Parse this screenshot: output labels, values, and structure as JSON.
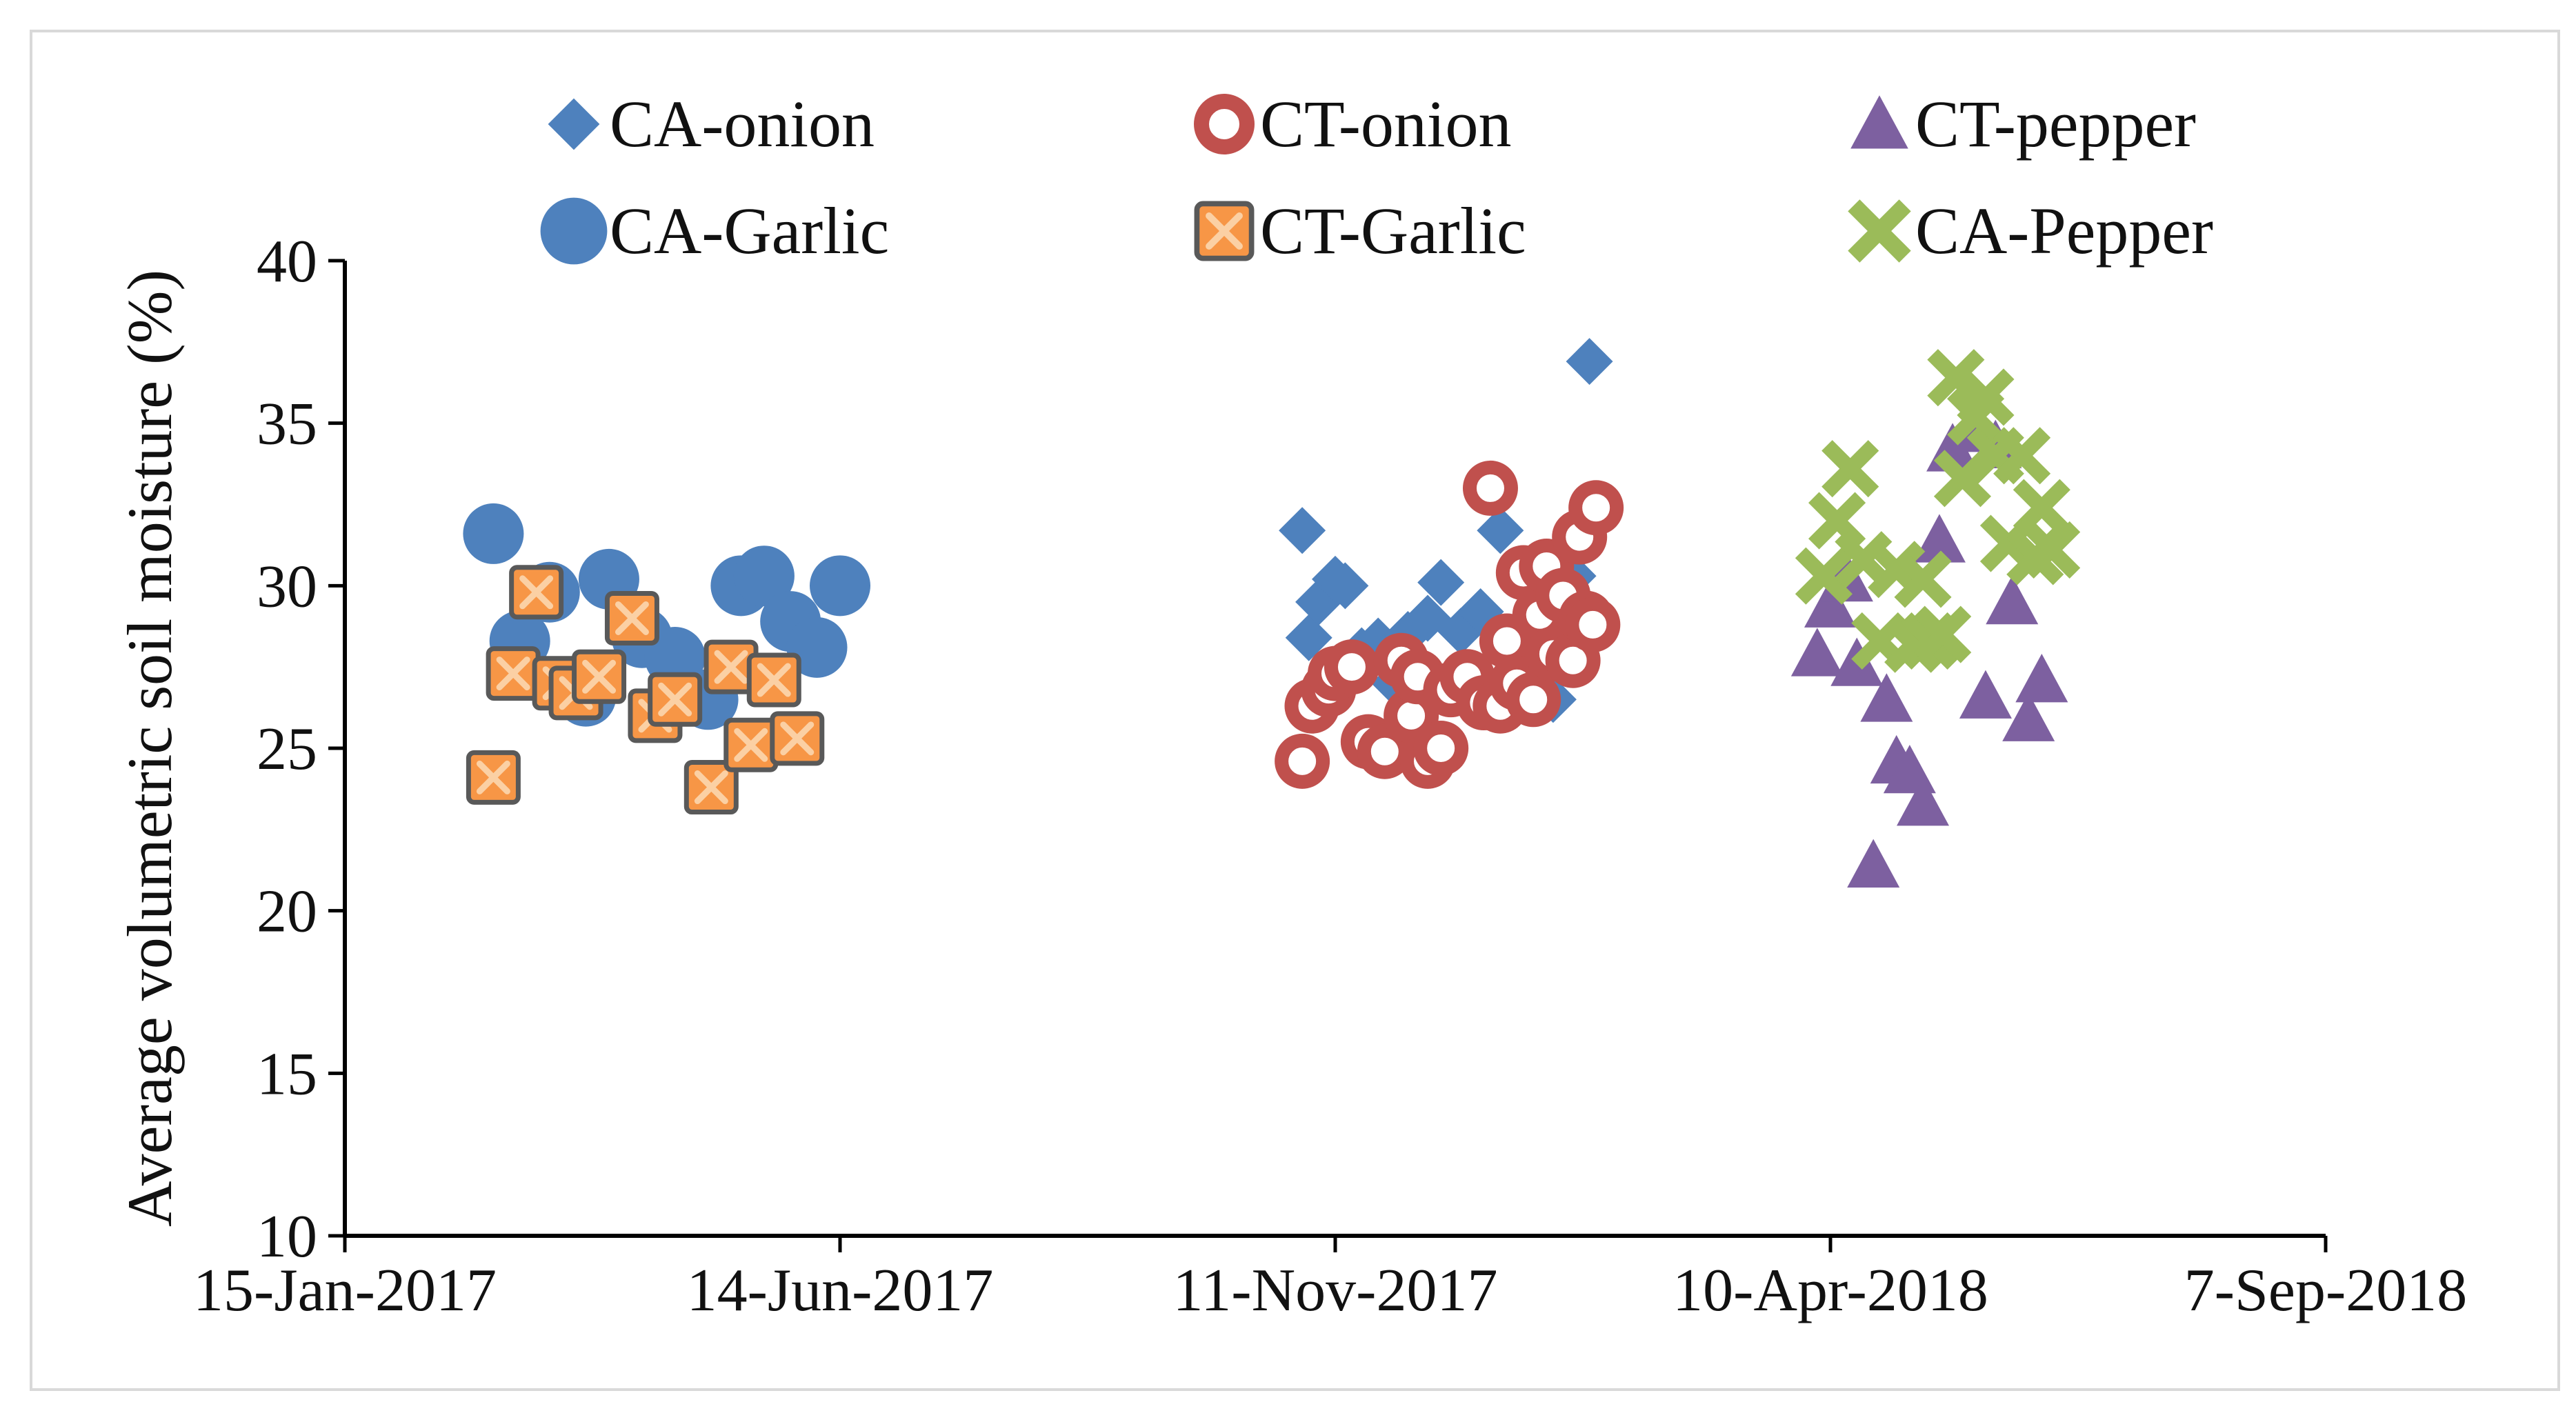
{
  "chart_data": {
    "type": "scatter",
    "title": "",
    "xlabel": "",
    "ylabel": "Average volumetric soil moisture (%)",
    "ylim": [
      10,
      40
    ],
    "yticks": [
      10,
      15,
      20,
      25,
      30,
      35,
      40
    ],
    "x_unit": "days since 15-Jan-2017",
    "xlim": [
      0,
      600
    ],
    "xticks": [
      {
        "value": 0,
        "label": "15-Jan-2017"
      },
      {
        "value": 150,
        "label": "14-Jun-2017"
      },
      {
        "value": 300,
        "label": "11-Nov-2017"
      },
      {
        "value": 450,
        "label": "10-Apr-2018"
      },
      {
        "value": 600,
        "label": "7-Sep-2018"
      }
    ],
    "legend_position": "top",
    "series": [
      {
        "name": "CA-onion",
        "marker": "diamond",
        "color": "#4e81bd",
        "points": [
          [
            290,
            31.7
          ],
          [
            292,
            28.4
          ],
          [
            295,
            29.5
          ],
          [
            300,
            30.2
          ],
          [
            303,
            30.0
          ],
          [
            308,
            28.0
          ],
          [
            313,
            28.3
          ],
          [
            318,
            27.0
          ],
          [
            322,
            28.5
          ],
          [
            328,
            29.0
          ],
          [
            332,
            30.1
          ],
          [
            338,
            28.6
          ],
          [
            344,
            29.2
          ],
          [
            350,
            31.7
          ],
          [
            356,
            28.6
          ],
          [
            362,
            27.2
          ],
          [
            366,
            26.5
          ],
          [
            372,
            30.3
          ],
          [
            376,
            28.5
          ],
          [
            377,
            36.9
          ]
        ]
      },
      {
        "name": "CT-onion",
        "marker": "ring",
        "color": "#c0504d",
        "points": [
          [
            290,
            24.6
          ],
          [
            293,
            26.3
          ],
          [
            298,
            26.8
          ],
          [
            300,
            27.3
          ],
          [
            305,
            27.5
          ],
          [
            310,
            25.2
          ],
          [
            315,
            24.9
          ],
          [
            320,
            27.7
          ],
          [
            323,
            26.0
          ],
          [
            325,
            27.2
          ],
          [
            328,
            24.6
          ],
          [
            332,
            25.0
          ],
          [
            335,
            26.8
          ],
          [
            340,
            27.2
          ],
          [
            345,
            26.4
          ],
          [
            347,
            33.0
          ],
          [
            350,
            26.3
          ],
          [
            352,
            28.3
          ],
          [
            355,
            27.0
          ],
          [
            357,
            30.4
          ],
          [
            360,
            26.5
          ],
          [
            362,
            29.1
          ],
          [
            364,
            30.6
          ],
          [
            366,
            27.9
          ],
          [
            369,
            29.7
          ],
          [
            372,
            27.7
          ],
          [
            374,
            31.5
          ],
          [
            376,
            29.0
          ],
          [
            378,
            28.8
          ],
          [
            379,
            32.4
          ]
        ]
      },
      {
        "name": "CT-pepper",
        "marker": "triangle",
        "color": "#7d60a0",
        "points": [
          [
            446,
            27.9
          ],
          [
            450,
            29.4
          ],
          [
            455,
            30.2
          ],
          [
            458,
            27.6
          ],
          [
            463,
            21.4
          ],
          [
            467,
            26.5
          ],
          [
            470,
            24.6
          ],
          [
            474,
            24.3
          ],
          [
            478,
            23.3
          ],
          [
            483,
            31.4
          ],
          [
            487,
            34.2
          ],
          [
            493,
            34.8
          ],
          [
            497,
            26.6
          ],
          [
            500,
            34.3
          ],
          [
            505,
            29.5
          ],
          [
            510,
            25.9
          ],
          [
            514,
            27.1
          ]
        ]
      },
      {
        "name": "CA-Garlic",
        "marker": "circle",
        "color": "#4e81bd",
        "points": [
          [
            45,
            31.6
          ],
          [
            53,
            28.3
          ],
          [
            62,
            29.8
          ],
          [
            73,
            26.6
          ],
          [
            80,
            30.2
          ],
          [
            90,
            28.4
          ],
          [
            100,
            27.8
          ],
          [
            110,
            26.5
          ],
          [
            120,
            30.0
          ],
          [
            127,
            30.3
          ],
          [
            135,
            28.9
          ],
          [
            143,
            28.1
          ],
          [
            150,
            30.0
          ]
        ]
      },
      {
        "name": "CT-Garlic",
        "marker": "square-x",
        "color": "#f79646",
        "points": [
          [
            45,
            24.1
          ],
          [
            51,
            27.3
          ],
          [
            58,
            29.8
          ],
          [
            65,
            27.0
          ],
          [
            70,
            26.7
          ],
          [
            77,
            27.2
          ],
          [
            87,
            29.0
          ],
          [
            94,
            26.0
          ],
          [
            100,
            26.5
          ],
          [
            111,
            23.8
          ],
          [
            117,
            27.5
          ],
          [
            123,
            25.1
          ],
          [
            130,
            27.1
          ],
          [
            137,
            25.3
          ]
        ]
      },
      {
        "name": "CA-Pepper",
        "marker": "x-cross",
        "color": "#9bbb59",
        "points": [
          [
            448,
            30.3
          ],
          [
            452,
            32.0
          ],
          [
            456,
            33.6
          ],
          [
            460,
            30.8
          ],
          [
            465,
            28.3
          ],
          [
            470,
            30.5
          ],
          [
            475,
            28.2
          ],
          [
            478,
            30.2
          ],
          [
            480,
            28.3
          ],
          [
            484,
            28.5
          ],
          [
            488,
            36.4
          ],
          [
            490,
            33.3
          ],
          [
            494,
            35.2
          ],
          [
            497,
            35.8
          ],
          [
            500,
            34.0
          ],
          [
            504,
            31.3
          ],
          [
            508,
            34.0
          ],
          [
            512,
            30.9
          ],
          [
            514,
            32.4
          ],
          [
            517,
            31.1
          ]
        ]
      }
    ]
  }
}
